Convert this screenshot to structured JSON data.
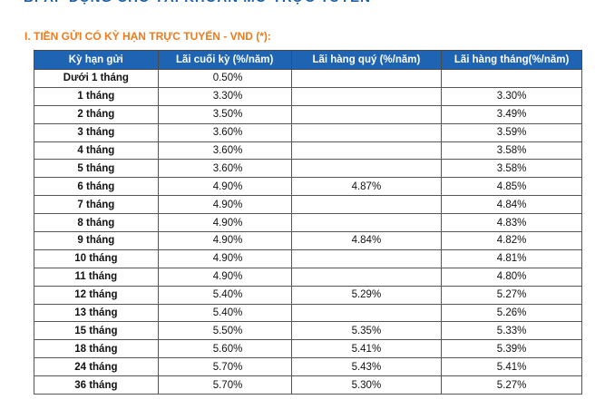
{
  "heading_cut": "B. ÁP DỤNG CHO TÀI KHOẢN MỞ TRỰC TUYẾN",
  "section_title": "I. TIỀN GỬI CÓ KỲ HẠN TRỰC TUYẾN - VND (*):",
  "table": {
    "headers": [
      "Kỳ hạn gửi",
      "Lãi cuối kỳ (%/năm)",
      "Lãi hàng quý (%/năm)",
      "Lãi hàng tháng(%/năm)"
    ],
    "rows": [
      {
        "term": "Dưới 1 tháng",
        "end": "0.50%",
        "quarterly": "",
        "monthly": ""
      },
      {
        "term": "1 tháng",
        "end": "3.30%",
        "quarterly": "",
        "monthly": "3.30%"
      },
      {
        "term": "2 tháng",
        "end": "3.50%",
        "quarterly": "",
        "monthly": "3.49%"
      },
      {
        "term": "3 tháng",
        "end": "3.60%",
        "quarterly": "",
        "monthly": "3.59%"
      },
      {
        "term": "4 tháng",
        "end": "3.60%",
        "quarterly": "",
        "monthly": "3.58%"
      },
      {
        "term": "5 tháng",
        "end": "3.60%",
        "quarterly": "",
        "monthly": "3.58%"
      },
      {
        "term": "6 tháng",
        "end": "4.90%",
        "quarterly": "4.87%",
        "monthly": "4.85%"
      },
      {
        "term": "7 tháng",
        "end": "4.90%",
        "quarterly": "",
        "monthly": "4.84%"
      },
      {
        "term": "8 tháng",
        "end": "4.90%",
        "quarterly": "",
        "monthly": "4.83%"
      },
      {
        "term": "9 tháng",
        "end": "4.90%",
        "quarterly": "4.84%",
        "monthly": "4.82%"
      },
      {
        "term": "10 tháng",
        "end": "4.90%",
        "quarterly": "",
        "monthly": "4.81%"
      },
      {
        "term": "11 tháng",
        "end": "4.90%",
        "quarterly": "",
        "monthly": "4.80%"
      },
      {
        "term": "12 tháng",
        "end": "5.40%",
        "quarterly": "5.29%",
        "monthly": "5.27%"
      },
      {
        "term": "13 tháng",
        "end": "5.40%",
        "quarterly": "",
        "monthly": "5.26%"
      },
      {
        "term": "15 tháng",
        "end": "5.50%",
        "quarterly": "5.35%",
        "monthly": "5.33%"
      },
      {
        "term": "18 tháng",
        "end": "5.60%",
        "quarterly": "5.41%",
        "monthly": "5.39%"
      },
      {
        "term": "24 tháng",
        "end": "5.70%",
        "quarterly": "5.43%",
        "monthly": "5.41%"
      },
      {
        "term": "36 tháng",
        "end": "5.70%",
        "quarterly": "5.30%",
        "monthly": "5.27%"
      }
    ]
  }
}
